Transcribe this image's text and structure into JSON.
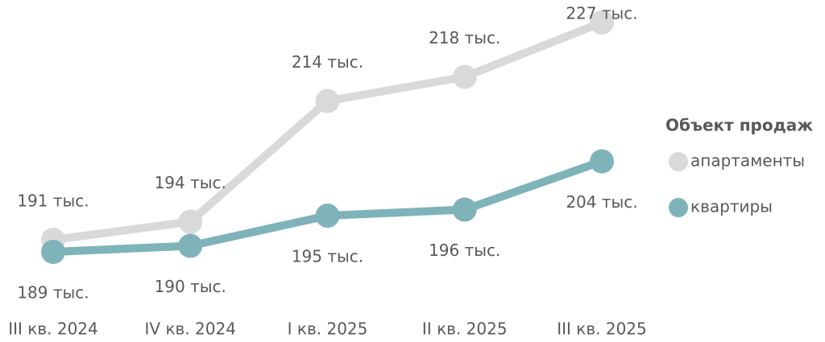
{
  "chart_data": {
    "type": "line",
    "categories": [
      "III кв. 2024",
      "IV кв. 2024",
      "I кв. 2025",
      "II кв. 2025",
      "III кв. 2025"
    ],
    "series": [
      {
        "name": "апартаменты",
        "color": "#d9d9d9",
        "values": [
          191,
          194,
          214,
          218,
          227
        ],
        "value_labels": [
          "191 тыс.",
          "194 тыс.",
          "214 тыс.",
          "218 тыс.",
          "227 тыс."
        ]
      },
      {
        "name": "квартиры",
        "color": "#7fb3ba",
        "values": [
          189,
          190,
          195,
          196,
          204
        ],
        "value_labels": [
          "189 тыс.",
          "190 тыс.",
          "195 тыс.",
          "196 тыс.",
          "204 тыс."
        ]
      }
    ],
    "legend_title": "Объект продаж",
    "legend": "right"
  }
}
